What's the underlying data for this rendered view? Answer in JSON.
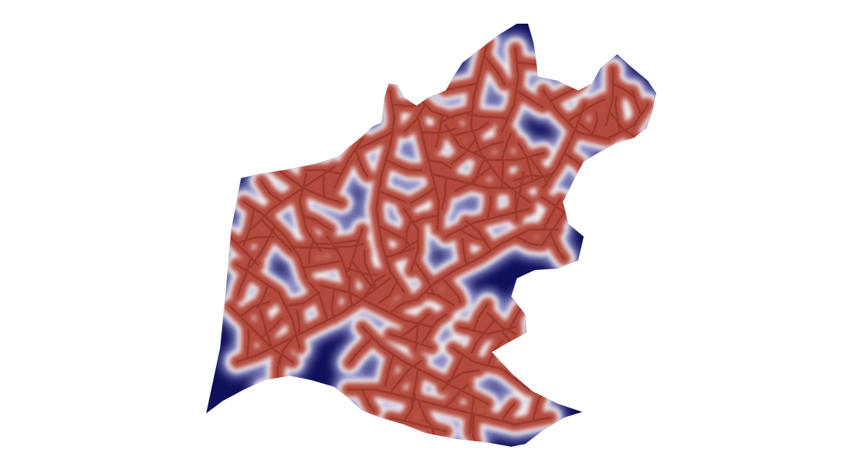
{
  "map": {
    "type": "distance-to-stream raster",
    "colors": {
      "background": "#ffffff",
      "near_stream": "#b44a3c",
      "mid": "#f2f2f6",
      "far": "#0f0f5a"
    }
  }
}
